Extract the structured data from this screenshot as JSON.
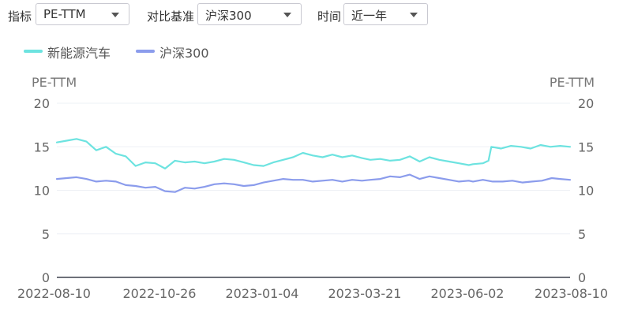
{
  "filters": {
    "metric": {
      "label": "指标",
      "value": "PE-TTM"
    },
    "benchmark": {
      "label": "对比基准",
      "value": "沪深300"
    },
    "period": {
      "label": "时间",
      "value": "近一年"
    }
  },
  "colors": {
    "series1": "#6de3e0",
    "series2": "#8b9cec",
    "grid": "#eef0f5",
    "axis": "#6e7079"
  },
  "chart_data": {
    "type": "line",
    "y_unit_left": "PE-TTM",
    "y_unit_right": "PE-TTM",
    "ylim": [
      0,
      20
    ],
    "y_ticks": [
      0,
      5,
      10,
      15,
      20
    ],
    "xlim": [
      "2022-08-10",
      "2023-08-10"
    ],
    "x_tick_labels": [
      "2022-08-10",
      "2022-10-26",
      "2023-01-04",
      "2023-03-21",
      "2023-06-02",
      "2023-08-10"
    ],
    "grid": true,
    "legend_position": "top-left",
    "series": [
      {
        "name": "新能源汽车",
        "points": [
          [
            "2022-08-10",
            15.5
          ],
          [
            "2022-08-17",
            15.7
          ],
          [
            "2022-08-24",
            15.9
          ],
          [
            "2022-08-31",
            15.6
          ],
          [
            "2022-09-07",
            14.6
          ],
          [
            "2022-09-14",
            15.0
          ],
          [
            "2022-09-21",
            14.2
          ],
          [
            "2022-09-28",
            13.9
          ],
          [
            "2022-10-05",
            12.8
          ],
          [
            "2022-10-12",
            13.2
          ],
          [
            "2022-10-19",
            13.1
          ],
          [
            "2022-10-26",
            12.5
          ],
          [
            "2022-11-02",
            13.4
          ],
          [
            "2022-11-09",
            13.2
          ],
          [
            "2022-11-16",
            13.3
          ],
          [
            "2022-11-23",
            13.1
          ],
          [
            "2022-11-30",
            13.3
          ],
          [
            "2022-12-07",
            13.6
          ],
          [
            "2022-12-14",
            13.5
          ],
          [
            "2022-12-21",
            13.2
          ],
          [
            "2022-12-28",
            12.9
          ],
          [
            "2023-01-04",
            12.8
          ],
          [
            "2023-01-11",
            13.2
          ],
          [
            "2023-01-18",
            13.5
          ],
          [
            "2023-01-25",
            13.8
          ],
          [
            "2023-02-01",
            14.3
          ],
          [
            "2023-02-08",
            14.0
          ],
          [
            "2023-02-15",
            13.8
          ],
          [
            "2023-02-22",
            14.1
          ],
          [
            "2023-03-01",
            13.8
          ],
          [
            "2023-03-08",
            14.0
          ],
          [
            "2023-03-15",
            13.7
          ],
          [
            "2023-03-21",
            13.5
          ],
          [
            "2023-03-28",
            13.6
          ],
          [
            "2023-04-04",
            13.4
          ],
          [
            "2023-04-11",
            13.5
          ],
          [
            "2023-04-18",
            13.9
          ],
          [
            "2023-04-25",
            13.3
          ],
          [
            "2023-05-02",
            13.8
          ],
          [
            "2023-05-09",
            13.5
          ],
          [
            "2023-05-16",
            13.3
          ],
          [
            "2023-05-23",
            13.1
          ],
          [
            "2023-05-30",
            12.9
          ],
          [
            "2023-06-02",
            13.0
          ],
          [
            "2023-06-09",
            13.1
          ],
          [
            "2023-06-13",
            13.4
          ],
          [
            "2023-06-15",
            15.0
          ],
          [
            "2023-06-22",
            14.8
          ],
          [
            "2023-06-29",
            15.1
          ],
          [
            "2023-07-06",
            15.0
          ],
          [
            "2023-07-13",
            14.8
          ],
          [
            "2023-07-20",
            15.2
          ],
          [
            "2023-07-27",
            15.0
          ],
          [
            "2023-08-03",
            15.1
          ],
          [
            "2023-08-10",
            15.0
          ]
        ]
      },
      {
        "name": "沪深300",
        "points": [
          [
            "2022-08-10",
            11.3
          ],
          [
            "2022-08-17",
            11.4
          ],
          [
            "2022-08-24",
            11.5
          ],
          [
            "2022-08-31",
            11.3
          ],
          [
            "2022-09-07",
            11.0
          ],
          [
            "2022-09-14",
            11.1
          ],
          [
            "2022-09-21",
            11.0
          ],
          [
            "2022-09-28",
            10.6
          ],
          [
            "2022-10-05",
            10.5
          ],
          [
            "2022-10-12",
            10.3
          ],
          [
            "2022-10-19",
            10.4
          ],
          [
            "2022-10-26",
            9.9
          ],
          [
            "2022-11-02",
            9.8
          ],
          [
            "2022-11-09",
            10.3
          ],
          [
            "2022-11-16",
            10.2
          ],
          [
            "2022-11-23",
            10.4
          ],
          [
            "2022-11-30",
            10.7
          ],
          [
            "2022-12-07",
            10.8
          ],
          [
            "2022-12-14",
            10.7
          ],
          [
            "2022-12-21",
            10.5
          ],
          [
            "2022-12-28",
            10.6
          ],
          [
            "2023-01-04",
            10.9
          ],
          [
            "2023-01-11",
            11.1
          ],
          [
            "2023-01-18",
            11.3
          ],
          [
            "2023-01-25",
            11.2
          ],
          [
            "2023-02-01",
            11.2
          ],
          [
            "2023-02-08",
            11.0
          ],
          [
            "2023-02-15",
            11.1
          ],
          [
            "2023-02-22",
            11.2
          ],
          [
            "2023-03-01",
            11.0
          ],
          [
            "2023-03-08",
            11.2
          ],
          [
            "2023-03-15",
            11.1
          ],
          [
            "2023-03-21",
            11.2
          ],
          [
            "2023-03-28",
            11.3
          ],
          [
            "2023-04-04",
            11.6
          ],
          [
            "2023-04-11",
            11.5
          ],
          [
            "2023-04-18",
            11.8
          ],
          [
            "2023-04-25",
            11.3
          ],
          [
            "2023-05-02",
            11.6
          ],
          [
            "2023-05-09",
            11.4
          ],
          [
            "2023-05-16",
            11.2
          ],
          [
            "2023-05-23",
            11.0
          ],
          [
            "2023-05-30",
            11.1
          ],
          [
            "2023-06-02",
            11.0
          ],
          [
            "2023-06-09",
            11.2
          ],
          [
            "2023-06-16",
            11.0
          ],
          [
            "2023-06-23",
            11.0
          ],
          [
            "2023-06-30",
            11.1
          ],
          [
            "2023-07-07",
            10.9
          ],
          [
            "2023-07-14",
            11.0
          ],
          [
            "2023-07-21",
            11.1
          ],
          [
            "2023-07-28",
            11.4
          ],
          [
            "2023-08-03",
            11.3
          ],
          [
            "2023-08-10",
            11.2
          ]
        ]
      }
    ]
  }
}
